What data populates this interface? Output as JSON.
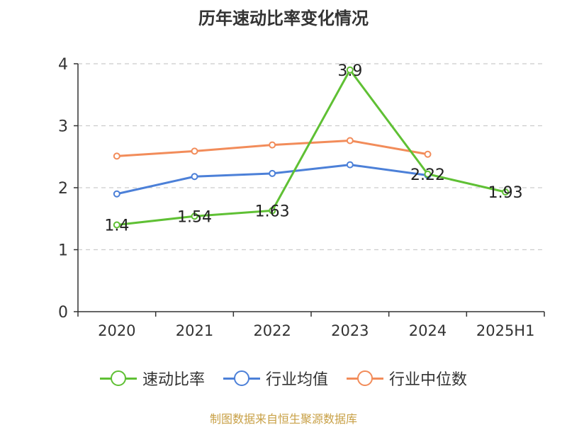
{
  "chart_data": {
    "type": "line",
    "title": "历年速动比率变化情况",
    "categories": [
      "2020",
      "2021",
      "2022",
      "2023",
      "2024",
      "2025H1"
    ],
    "ylim": [
      0,
      4
    ],
    "yticks": [
      0,
      1,
      2,
      3,
      4
    ],
    "grid": true,
    "legend_position": "bottom",
    "series": [
      {
        "name": "速动比率",
        "color": "#5fc034",
        "values": [
          1.4,
          1.54,
          1.63,
          3.9,
          2.22,
          1.93
        ],
        "labels": [
          "1.4",
          "1.54",
          "1.63",
          "3.9",
          "2.22",
          "1.93"
        ]
      },
      {
        "name": "行业均值",
        "color": "#4c80d8",
        "values": [
          1.9,
          2.18,
          2.23,
          2.37,
          2.2,
          null
        ]
      },
      {
        "name": "行业中位数",
        "color": "#f28c5a",
        "values": [
          2.51,
          2.59,
          2.69,
          2.76,
          2.54,
          null
        ]
      }
    ]
  },
  "footer": {
    "source": "制图数据来自恒生聚源数据库"
  }
}
